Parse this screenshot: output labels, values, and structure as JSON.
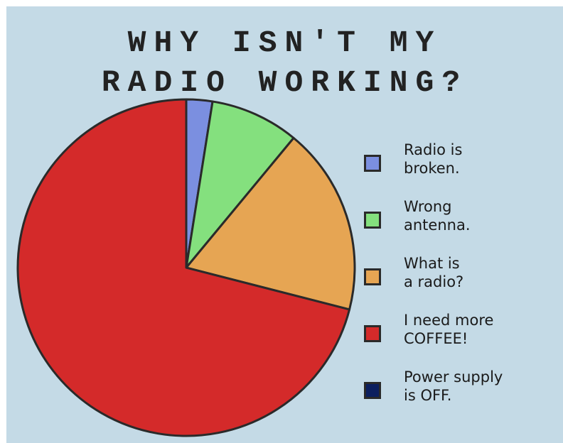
{
  "chart_data": {
    "type": "pie",
    "title": "WHY ISN'T MY RADIO WORKING?",
    "title_lines": [
      "WHY ISN'T MY",
      "RADIO WORKING?"
    ],
    "slices": [
      {
        "label": "Radio is\nbroken.",
        "value": 2.5,
        "color": "#7b8fe0"
      },
      {
        "label": "Wrong\nantenna.",
        "value": 8.5,
        "color": "#84e07e"
      },
      {
        "label": "What is\na radio?",
        "value": 18,
        "color": "#e6a553"
      },
      {
        "label": "I need more\nCOFFEE!",
        "value": 71,
        "color": "#d42a2a"
      },
      {
        "label": "Power supply\nis OFF.",
        "value": 0,
        "color": "#0c1f5e"
      }
    ],
    "legend_position": "right"
  },
  "colors": {
    "background": "#c4dae6",
    "outline": "#2a2a2a"
  }
}
